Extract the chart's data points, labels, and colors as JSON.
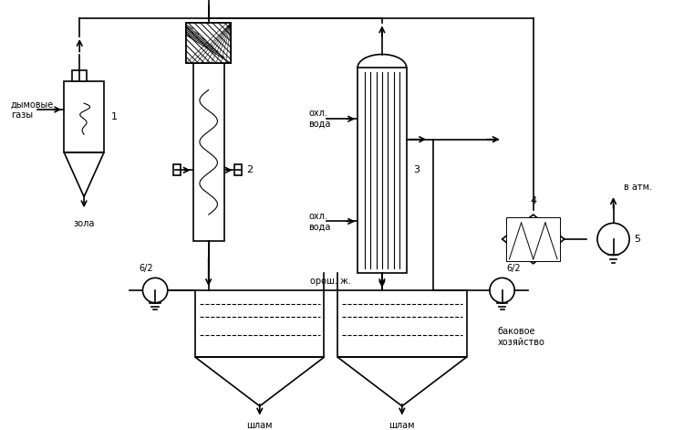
{
  "bg_color": "#ffffff",
  "line_color": "#000000",
  "line_width": 1.2,
  "fig_width": 7.5,
  "fig_height": 4.71,
  "labels": {
    "dymovye": "дымовые\nгазы",
    "zola": "зола",
    "label1": "1",
    "label2": "2",
    "label3": "3",
    "label4": "4",
    "label5": "5",
    "ohlvoda1": "охл.\nвода",
    "ohlvoda2": "охл.\nвода",
    "oroshj": "орош. ж.",
    "shlam1": "шлам",
    "shlam2": "шлам",
    "bakovoe": "баковое\nхозяйство",
    "v_atm": "в атм.",
    "pump62_1": "6/2",
    "pump62_2": "6/2"
  }
}
